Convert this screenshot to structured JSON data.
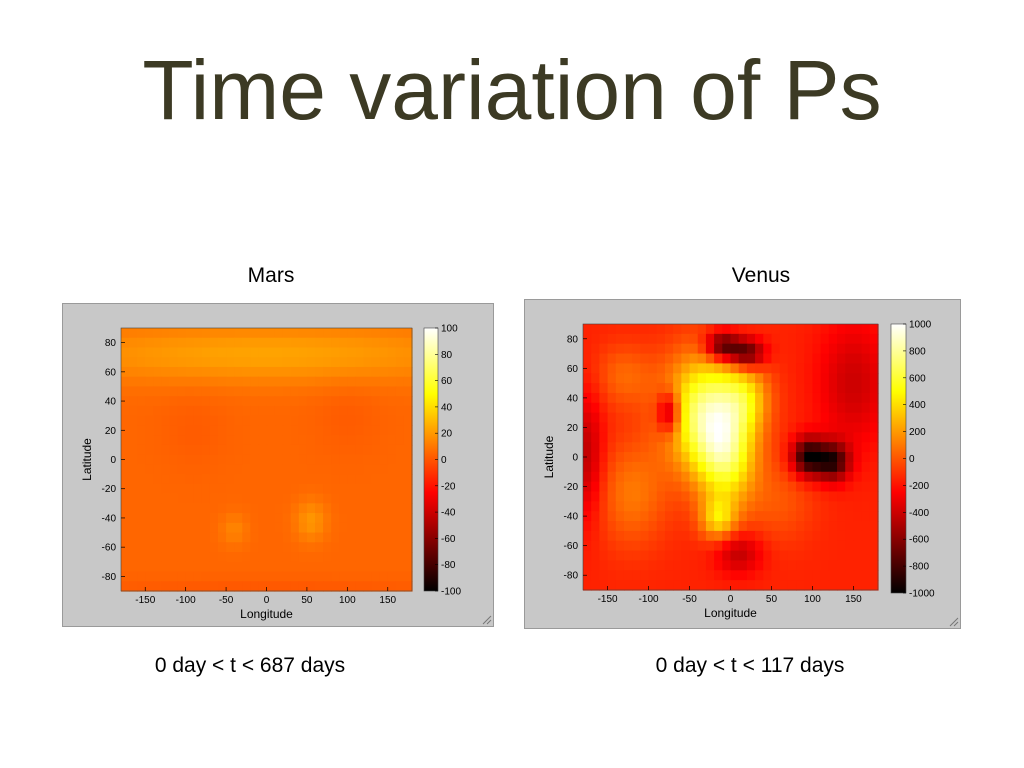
{
  "slide": {
    "title": "Time variation of Ps"
  },
  "panels": [
    {
      "title": "Mars",
      "caption": "0 day < t < 687 days"
    },
    {
      "title": "Venus",
      "caption": "0 day < t < 117 days"
    }
  ],
  "chart_data": [
    {
      "type": "heatmap",
      "title": "Mars",
      "xlabel": "Longitude",
      "ylabel": "Latitude",
      "xlim": [
        -180,
        180
      ],
      "ylim": [
        -90,
        90
      ],
      "x_ticks": [
        -150,
        -100,
        -50,
        0,
        50,
        100,
        150
      ],
      "y_ticks": [
        -80,
        -60,
        -40,
        -20,
        0,
        20,
        40,
        60,
        80
      ],
      "colorbar": {
        "min": -100,
        "max": 100,
        "ticks": [
          -100,
          -80,
          -60,
          -40,
          -20,
          0,
          20,
          40,
          60,
          80,
          100
        ]
      },
      "colormap": "hot",
      "base_value": 5,
      "features": [
        {
          "lon": 0,
          "lat": 72,
          "value": 18,
          "lon_sigma": 200,
          "lat_sigma": 14
        },
        {
          "lon": 55,
          "lat": -42,
          "value": 14,
          "lon_sigma": 14,
          "lat_sigma": 10
        },
        {
          "lon": -40,
          "lat": -48,
          "value": 9,
          "lon_sigma": 12,
          "lat_sigma": 8
        },
        {
          "lon": -90,
          "lat": 20,
          "value": -3,
          "lon_sigma": 30,
          "lat_sigma": 20
        },
        {
          "lon": 100,
          "lat": 30,
          "value": -3,
          "lon_sigma": 30,
          "lat_sigma": 20
        },
        {
          "lon": 0,
          "lat": -88,
          "value": -4,
          "lon_sigma": 200,
          "lat_sigma": 5
        }
      ]
    },
    {
      "type": "heatmap",
      "title": "Venus",
      "xlabel": "Longitude",
      "ylabel": "Latitude",
      "xlim": [
        -180,
        180
      ],
      "ylim": [
        -90,
        90
      ],
      "x_ticks": [
        -150,
        -100,
        -50,
        0,
        50,
        100,
        150
      ],
      "y_ticks": [
        -80,
        -60,
        -40,
        -20,
        0,
        20,
        40,
        60,
        80
      ],
      "colorbar": {
        "min": -1000,
        "max": 1000,
        "ticks": [
          -1000,
          -800,
          -600,
          -400,
          -200,
          0,
          200,
          400,
          600,
          800,
          1000
        ]
      },
      "colormap": "hot",
      "base_value": -150,
      "features": [
        {
          "lon": -30,
          "lat": 30,
          "value": 850,
          "lon_sigma": 35,
          "lat_sigma": 28
        },
        {
          "lon": -5,
          "lat": 0,
          "value": 600,
          "lon_sigma": 25,
          "lat_sigma": 25
        },
        {
          "lon": -15,
          "lat": -42,
          "value": 450,
          "lon_sigma": 15,
          "lat_sigma": 10
        },
        {
          "lon": 20,
          "lat": 40,
          "value": 350,
          "lon_sigma": 20,
          "lat_sigma": 15
        },
        {
          "lon": -120,
          "lat": -25,
          "value": 250,
          "lon_sigma": 30,
          "lat_sigma": 25
        },
        {
          "lon": -130,
          "lat": 55,
          "value": 200,
          "lon_sigma": 25,
          "lat_sigma": 15
        },
        {
          "lon": 60,
          "lat": -30,
          "value": 150,
          "lon_sigma": 30,
          "lat_sigma": 20
        },
        {
          "lon": -10,
          "lat": 75,
          "value": -700,
          "lon_sigma": 15,
          "lat_sigma": 7
        },
        {
          "lon": 20,
          "lat": 70,
          "value": -650,
          "lon_sigma": 15,
          "lat_sigma": 7
        },
        {
          "lon": -75,
          "lat": 30,
          "value": -550,
          "lon_sigma": 10,
          "lat_sigma": 10
        },
        {
          "lon": 95,
          "lat": 0,
          "value": -800,
          "lon_sigma": 14,
          "lat_sigma": 9
        },
        {
          "lon": 125,
          "lat": -3,
          "value": -700,
          "lon_sigma": 14,
          "lat_sigma": 9
        },
        {
          "lon": -175,
          "lat": 0,
          "value": -300,
          "lon_sigma": 14,
          "lat_sigma": 30
        },
        {
          "lon": 10,
          "lat": -65,
          "value": -300,
          "lon_sigma": 20,
          "lat_sigma": 10
        },
        {
          "lon": 150,
          "lat": 50,
          "value": -250,
          "lon_sigma": 30,
          "lat_sigma": 30
        }
      ]
    }
  ]
}
